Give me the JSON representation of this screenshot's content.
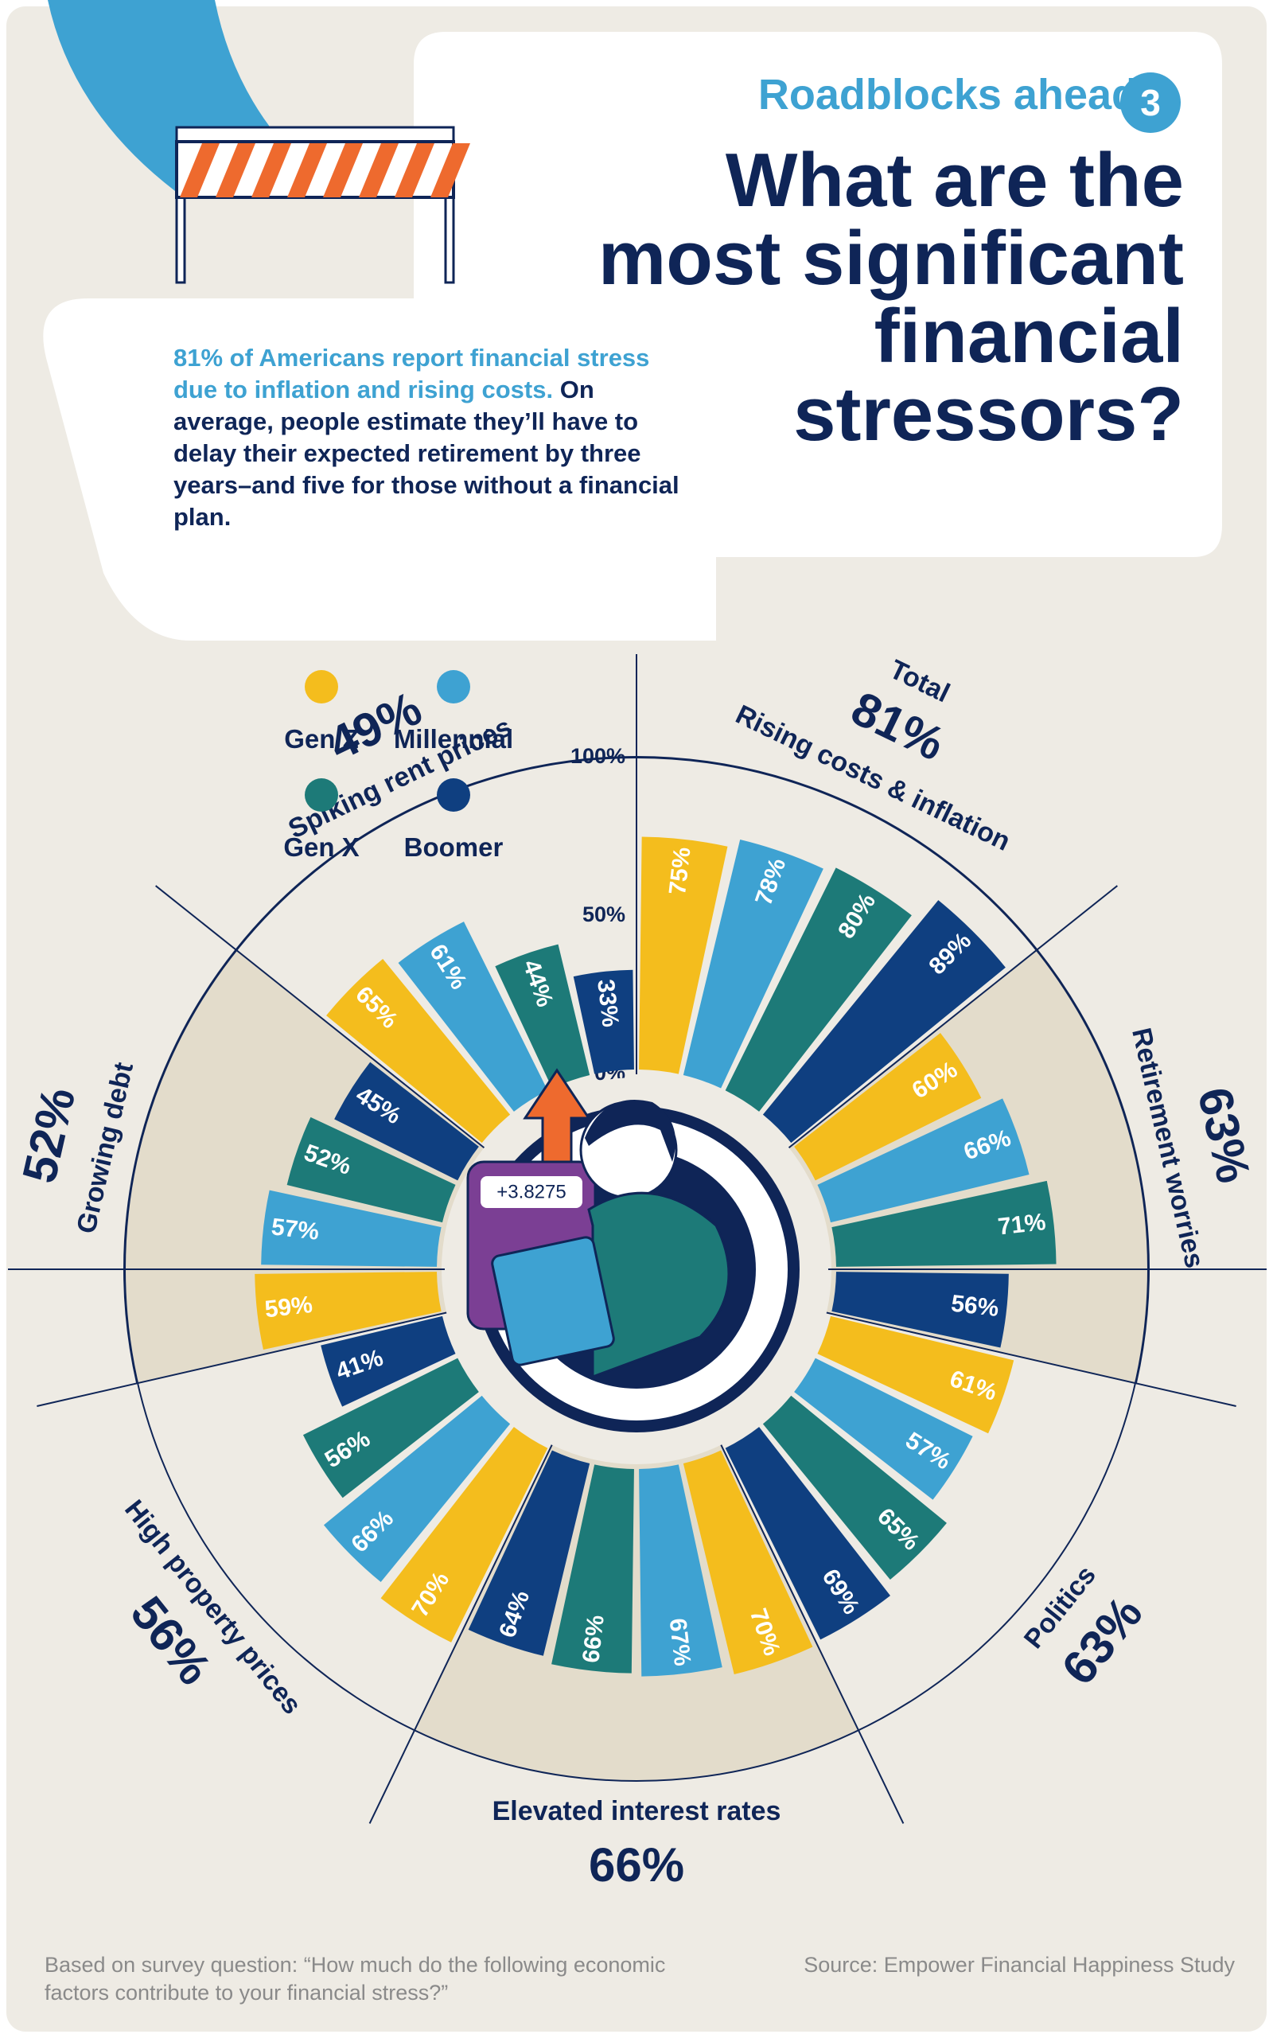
{
  "header": {
    "kicker": "Roadblocks ahead",
    "kicker_number": "3",
    "title_lines": [
      "What are the",
      "most significant",
      "financial",
      "stressors?"
    ]
  },
  "intro": {
    "highlight": "81% of Americans report financial stress due to inflation and rising costs.",
    "rest": "On average, people estimate they’ll have to delay their expected retirement by three years–and five for those without a financial plan."
  },
  "footer": {
    "note": "Based on survey question: “How much do the following economic factors contribute to your financial stress?”",
    "source": "Source: Empower Financial Happiness Study"
  },
  "calculator": {
    "display": "+3.8275"
  },
  "colors": {
    "background": "#eeebe4",
    "panel": "#ffffff",
    "sector_shade": "#e3dccb",
    "navy_text": "#0f2557",
    "accent_blue": "#3ea2d2",
    "gen_z": "#f4bd1d",
    "millennial": "#3ea2d2",
    "gen_x": "#1d7a78",
    "boomer": "#0f3f80",
    "barrier_orange": "#ee6a2e"
  },
  "chart_data": {
    "type": "bar",
    "layout": "radial",
    "axis_ticks": [
      "0%",
      "50%",
      "100%"
    ],
    "ylim": [
      0,
      100
    ],
    "legend": [
      "Gen Z",
      "Millennial",
      "Gen X",
      "Boomer"
    ],
    "legend_placement": "top-left",
    "categories": [
      "Rising costs & inflation",
      "Retirement worries",
      "Politics",
      "Elevated interest rates",
      "High property prices",
      "Growing debt",
      "Spiking rent prices"
    ],
    "totals": [
      "81%",
      "63%",
      "63%",
      "66%",
      "56%",
      "52%",
      "49%"
    ],
    "total_label": "Total",
    "series": [
      {
        "name": "Gen Z",
        "values": [
          75,
          60,
          61,
          70,
          70,
          59,
          65
        ]
      },
      {
        "name": "Millennial",
        "values": [
          78,
          66,
          57,
          67,
          66,
          57,
          61
        ]
      },
      {
        "name": "Gen X",
        "values": [
          80,
          71,
          65,
          66,
          56,
          52,
          44
        ]
      },
      {
        "name": "Boomer",
        "values": [
          89,
          56,
          69,
          64,
          41,
          45,
          33
        ]
      }
    ]
  }
}
